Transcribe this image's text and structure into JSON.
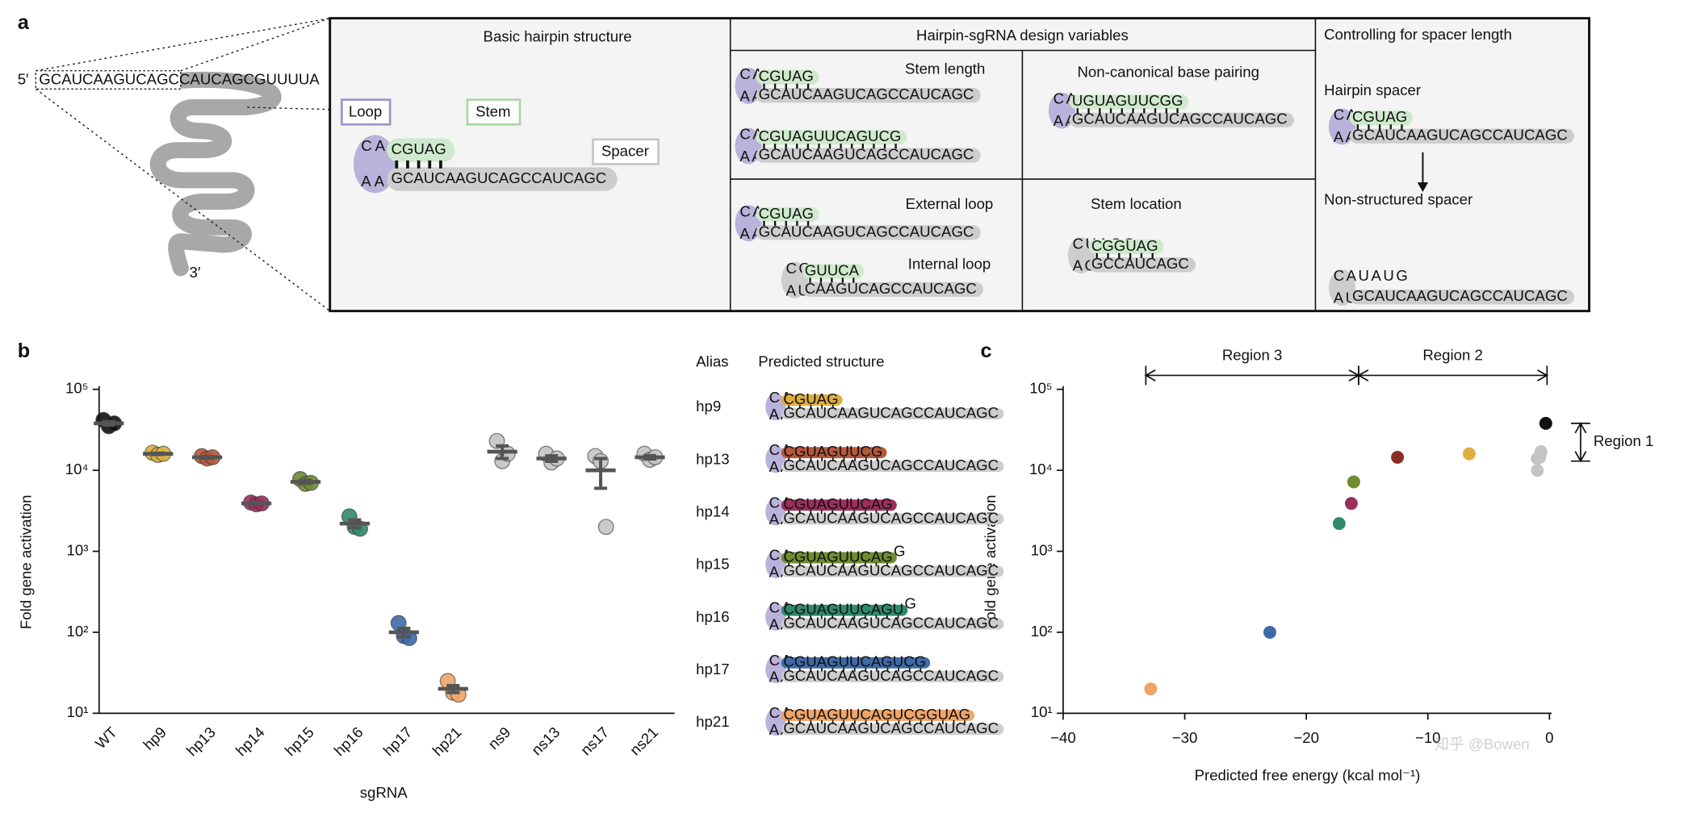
{
  "panel_labels": [
    "a",
    "b",
    "c"
  ],
  "panel_a": {
    "overview": {
      "five_prime": "5′",
      "three_prime": "3′",
      "sequence": "GCAUCAAGUCAGCCAUCAGCGUUUUA"
    },
    "basic": {
      "title": "Basic hairpin structure",
      "loop_label": "Loop",
      "stem_label": "Stem",
      "spacer_label": "Spacer",
      "loop_top": "CA",
      "loop_bottom": "AA",
      "stem": "CGUAG",
      "spacer": "GCAUCAAGUCAGCCAUCAGC"
    },
    "design": {
      "title": "Hairpin-sgRNA design variables",
      "items": [
        {
          "title": "Stem length",
          "loop_top": "CA",
          "loop_bottom": "AA",
          "stem": "CGUAG",
          "spacer": "GCAUCAAGUCAGCCAUCAGC"
        },
        {
          "loop_top": "CA",
          "loop_bottom": "AA",
          "stem": "CGUAGUUCAGUCG",
          "spacer": "GCAUCAAGUCAGCCAUCAGC"
        },
        {
          "title": "Non-canonical base pairing",
          "loop_top": "CA",
          "loop_bottom": "AA",
          "stem": "UGUAGUUCGG",
          "spacer": "GCAUCAAGUCAGCCAUCAGC"
        },
        {
          "title": "External loop",
          "loop_top": "CA",
          "loop_bottom": "AA",
          "stem": "CGUAG",
          "spacer": "GCAUCAAGUCAGCCAUCAGC"
        },
        {
          "title": "Internal loop",
          "loop_top": "CG",
          "loop_bottom": "AU",
          "stem": "GUUCA",
          "spacer": "CAAGUCAGCCAUCAGC"
        },
        {
          "title": "Stem location",
          "loop_top": "CUACG",
          "loop_bottom": "AGUC",
          "stem": "CGGUAG",
          "spacer": "GCCAUCAGC"
        }
      ]
    },
    "spacer_control": {
      "title": "Controlling for spacer length",
      "items": [
        {
          "title": "Hairpin spacer",
          "loop_top": "CA",
          "loop_bottom": "AA",
          "stem": "CGUAG",
          "spacer": "GCAUCAAGUCAGCCAUCAGC"
        },
        {
          "title": "Non-structured spacer",
          "loop_top": "CAUAUG",
          "loop_bottom": "AU",
          "spacer": "GCAUCAAGUCAGCCAUCAGC"
        }
      ]
    }
  },
  "structure_table": {
    "header": [
      "Alias",
      "Predicted structure"
    ],
    "rows": [
      {
        "alias": "hp9",
        "loop_top": "CA",
        "loop_bottom": "AA",
        "stem": "CGUAG",
        "spacer": "GCAUCAAGUCAGCCAUCAGC"
      },
      {
        "alias": "hp13",
        "loop_top": "CA",
        "loop_bottom": "AA",
        "stem": "CGUAGUUCG",
        "spacer": "GCAUCAAGUCAGCCAUCAGC"
      },
      {
        "alias": "hp14",
        "loop_top": "CA",
        "loop_bottom": "AA",
        "stem": "CGUAGUUCAG",
        "spacer": "GCAUCAAGUCAGCCAUCAGC"
      },
      {
        "alias": "hp15",
        "loop_top": "CA",
        "loop_bottom": "AA",
        "stem": "CGUAGUUCAG",
        "overhang": "G",
        "spacer": "GCAUCAAGUCAGCCAUCAGC"
      },
      {
        "alias": "hp16",
        "loop_top": "CA",
        "loop_bottom": "AA",
        "stem": "CGUAGUUCAGU",
        "overhang": "G",
        "spacer": "GCAUCAAGUCAGCCAUCAGC"
      },
      {
        "alias": "hp17",
        "loop_top": "CA",
        "loop_bottom": "AA",
        "stem": "CGUAGUUCAGUCG",
        "spacer": "GCAUCAAGUCAGCCAUCAGC"
      },
      {
        "alias": "hp21",
        "loop_top": "CA",
        "loop_bottom": "AA",
        "stem": "CGUAGUUCAGUCGGUAG",
        "spacer": "GCAUCAAGUCAGCCAUCAGC"
      }
    ]
  },
  "chart_data": [
    {
      "type": "strip",
      "y_label": "Fold gene activation",
      "x_label": "sgRNA",
      "categories": [
        "WT",
        "hp9",
        "hp13",
        "hp14",
        "hp15",
        "hp16",
        "hp17",
        "hp21",
        "ns9",
        "ns13",
        "ns17",
        "ns21"
      ],
      "values": [
        38000,
        16000,
        14500,
        3900,
        7200,
        2200,
        100,
        20,
        17000,
        14000,
        10000,
        14500
      ],
      "errors": [
        2000,
        300,
        300,
        100,
        300,
        250,
        12,
        2,
        3000,
        1100,
        4000,
        700
      ],
      "replicates": [
        [
          42000,
          35000,
          38000
        ],
        [
          16500,
          15500,
          16000
        ],
        [
          15000,
          14000,
          14500
        ],
        [
          4000,
          3800,
          3900
        ],
        [
          7800,
          6800,
          7000
        ],
        [
          2700,
          2000,
          1900
        ],
        [
          130,
          90,
          85
        ],
        [
          25,
          18,
          17
        ],
        [
          23000,
          13000,
          16000
        ],
        [
          16000,
          12500,
          14000
        ],
        [
          15000,
          13000,
          2000
        ],
        [
          16000,
          13500,
          14500
        ]
      ],
      "colors": [
        "#111111",
        "#dcae3e",
        "#b5583c",
        "#9c2f5c",
        "#6f8c30",
        "#2f8a6a",
        "#3f6aa8",
        "#f0a468",
        "#c4c4c4",
        "#c4c4c4",
        "#c4c4c4",
        "#c4c4c4"
      ],
      "log_y": true,
      "ylim": [
        10,
        100000
      ],
      "yticks": [
        {
          "value": 10,
          "label": "10¹"
        },
        {
          "value": 100,
          "label": "10²"
        },
        {
          "value": 1000,
          "label": "10³"
        },
        {
          "value": 10000,
          "label": "10⁴"
        },
        {
          "value": 100000,
          "label": "10⁵"
        }
      ]
    },
    {
      "type": "scatter",
      "y_label": "Fold gene activation",
      "x_label": "Predicted free energy (kcal mol⁻¹)",
      "x": [
        -0.3,
        -6.6,
        -12.5,
        -16.3,
        -16.1,
        -17.3,
        -23.0,
        -32.8,
        -0.7,
        -1.0,
        -1.0,
        -0.8
      ],
      "values": [
        38000,
        16000,
        14500,
        3900,
        7200,
        2200,
        100,
        20,
        17000,
        14000,
        10000,
        14500
      ],
      "colors": [
        "#111111",
        "#dcae3e",
        "#8a2f25",
        "#9c2f5c",
        "#6f8c30",
        "#2f8a6a",
        "#3f6aa8",
        "#f0a468",
        "#c4c4c4",
        "#c4c4c4",
        "#c4c4c4",
        "#c4c4c4"
      ],
      "log_y": true,
      "xlim": [
        -40,
        0
      ],
      "ylim": [
        10,
        100000
      ],
      "xticks": [
        {
          "value": -40,
          "label": "−40"
        },
        {
          "value": -30,
          "label": "−30"
        },
        {
          "value": -20,
          "label": "−20"
        },
        {
          "value": -10,
          "label": "−10"
        },
        0
      ],
      "yticks": [
        {
          "value": 10,
          "label": "10¹"
        },
        {
          "value": 100,
          "label": "10²"
        },
        {
          "value": 1000,
          "label": "10³"
        },
        {
          "value": 10000,
          "label": "10⁴"
        },
        {
          "value": 100000,
          "label": "10⁵"
        }
      ],
      "regions_x": [
        {
          "label": "Region 3",
          "x": [
            -33.2,
            -15.7
          ]
        },
        {
          "label": "Region 2",
          "x": [
            -15.7,
            -0.2
          ]
        }
      ],
      "regions_y": [
        {
          "label": "Region 1",
          "y": [
            13000,
            38000
          ]
        }
      ]
    }
  ],
  "watermark": "知乎 @Bowen"
}
